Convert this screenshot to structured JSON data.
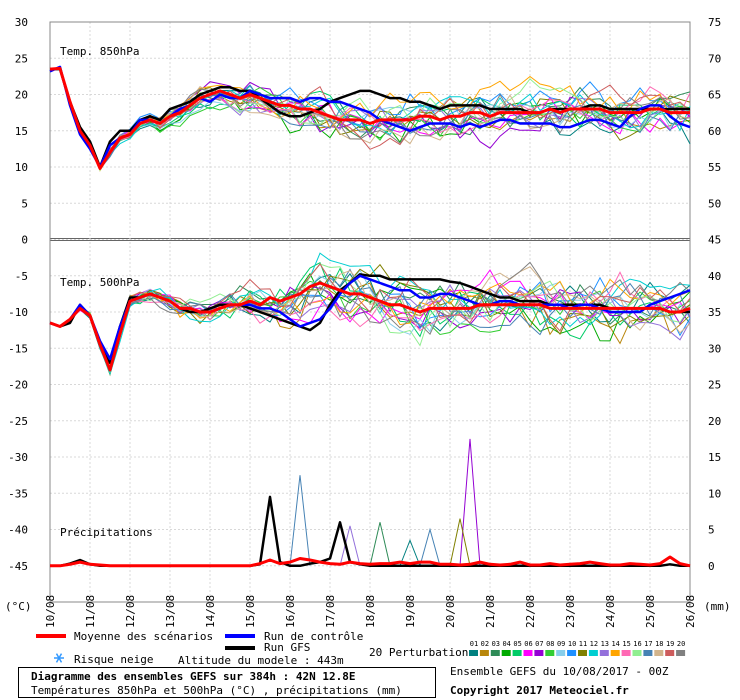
{
  "chart_data": {
    "type": "line",
    "title": "Diagramme des ensembles GEFS sur 384h : 42N 12.8E",
    "subtitle": "Températures 850hPa et 500hPa (°C) , précipitations (mm)",
    "x_ticks": [
      "10/08",
      "11/08",
      "12/08",
      "13/08",
      "14/08",
      "15/08",
      "16/08",
      "17/08",
      "18/08",
      "19/08",
      "20/08",
      "21/08",
      "22/08",
      "23/08",
      "24/08",
      "25/08",
      "26/08"
    ],
    "y_left_ticks": [
      "30",
      "25",
      "20",
      "15",
      "10",
      "5",
      "0",
      "-5",
      "-10",
      "-15",
      "-20",
      "-25",
      "-30",
      "-35",
      "-40",
      "-45"
    ],
    "y_right_ticks": [
      "75",
      "70",
      "65",
      "60",
      "55",
      "50",
      "45",
      "40",
      "35",
      "30",
      "25",
      "20",
      "15",
      "10",
      "5",
      "0"
    ],
    "y_left_unit": "(°C)",
    "y_right_unit": "(mm)",
    "ylim_left": [
      -50,
      30
    ],
    "panel_labels": [
      "Temp. 850hPa",
      "Temp. 500hPa",
      "Précipitations"
    ],
    "x_step_hours": 6,
    "member_colors": [
      "#008080",
      "#b8860b",
      "#2e8b57",
      "#00aa00",
      "#00cc66",
      "#ff00ff",
      "#9400d3",
      "#32cd32",
      "#87ceeb",
      "#1e90ff",
      "#808000",
      "#00ced1",
      "#9370db",
      "#ffa500",
      "#ff69b4",
      "#90ee90",
      "#4682b4",
      "#d2b48c",
      "#cd5c5c",
      "#808080"
    ],
    "series": [
      {
        "name": "Moyenne des scénarios",
        "color": "#ff0000",
        "panel": "850hPa",
        "values": [
          23.5,
          23.6,
          19,
          15,
          13,
          9.8,
          12,
          14,
          14.5,
          16,
          16.5,
          16,
          17,
          17.5,
          18.5,
          19.5,
          20,
          20.5,
          20,
          19.5,
          20,
          19.5,
          19,
          18.5,
          18.5,
          18,
          18,
          17.5,
          17,
          16.5,
          16.5,
          16.5,
          16,
          16.5,
          16.5,
          16.5,
          16.5,
          17,
          17,
          16.5,
          17,
          17,
          17.5,
          17.5,
          17,
          17.5,
          17.5,
          17.5,
          17.5,
          17.5,
          18,
          17.5,
          18,
          18,
          18,
          18,
          17.5,
          17.5,
          17.5,
          17.5,
          18,
          18,
          17.5,
          17.5,
          17.5
        ]
      },
      {
        "name": "Run de contrôle",
        "color": "#0000ff",
        "panel": "850hPa",
        "values": [
          23.2,
          23.8,
          18.5,
          14.5,
          12.5,
          10,
          13,
          14,
          14.5,
          16.5,
          16.5,
          16,
          17,
          18,
          18.5,
          19.5,
          19,
          20,
          19.5,
          19.5,
          20.5,
          20,
          19.5,
          19.5,
          19.5,
          19,
          19.5,
          19.5,
          19,
          19,
          18.5,
          18,
          17.5,
          16.5,
          16,
          15.5,
          15,
          15.5,
          16,
          16,
          16,
          15.5,
          16,
          15.5,
          16,
          16.5,
          16.5,
          16,
          16,
          16,
          16,
          15.5,
          15.5,
          16,
          16.5,
          16.5,
          16,
          15.5,
          17,
          18,
          18.5,
          18.5,
          17,
          16,
          15.5
        ]
      },
      {
        "name": "Run GFS",
        "color": "#000000",
        "panel": "850hPa",
        "values": [
          23.5,
          23.5,
          19,
          15.5,
          13.5,
          10,
          13.5,
          15,
          15,
          16.5,
          17,
          16.5,
          18,
          18.5,
          19,
          20,
          20.5,
          21,
          21,
          20.5,
          20.5,
          19.5,
          18.5,
          17.5,
          17,
          17,
          17.5,
          18,
          19,
          19.5,
          20,
          20.5,
          20.5,
          20,
          19.5,
          19.5,
          19,
          19,
          18.5,
          18,
          18.5,
          18.5,
          18.5,
          18.5,
          18,
          18,
          18,
          18,
          17.5,
          17.5,
          18,
          18,
          18,
          18,
          18.5,
          18.5,
          18,
          18,
          18,
          18,
          18,
          18,
          18,
          18,
          18
        ]
      },
      {
        "name": "Moyenne des scénarios",
        "color": "#ff0000",
        "panel": "500hPa",
        "values": [
          -11.5,
          -12,
          -11,
          -9.5,
          -10.5,
          -14.5,
          -18,
          -13,
          -8.5,
          -8,
          -7.5,
          -8,
          -8.5,
          -9.5,
          -9.5,
          -10,
          -10,
          -9.5,
          -9,
          -9,
          -8.5,
          -9,
          -8,
          -8.5,
          -8,
          -7.5,
          -6.5,
          -6,
          -6.5,
          -7,
          -7.5,
          -7.5,
          -8,
          -8.5,
          -9,
          -9,
          -9.5,
          -10,
          -9.5,
          -9.5,
          -9.5,
          -9.5,
          -9.5,
          -9,
          -9,
          -9,
          -9,
          -9,
          -9,
          -9,
          -9.5,
          -9.5,
          -9.5,
          -9.5,
          -9.5,
          -9.5,
          -9.5,
          -9.5,
          -9.5,
          -9.5,
          -9.5,
          -9.5,
          -10,
          -10,
          -9.5
        ]
      },
      {
        "name": "Run de contrôle",
        "color": "#0000ff",
        "panel": "500hPa",
        "values": [
          -11.5,
          -12,
          -11,
          -9,
          -10.5,
          -14,
          -16.5,
          -12,
          -8.5,
          -8,
          -7.5,
          -8,
          -8.5,
          -9.5,
          -9.5,
          -10,
          -10,
          -9.5,
          -9,
          -9,
          -9,
          -9.5,
          -9.5,
          -10,
          -11,
          -12,
          -11.5,
          -11,
          -9.5,
          -7.5,
          -6,
          -5,
          -5.5,
          -6,
          -6.5,
          -7,
          -7,
          -8,
          -8,
          -7.5,
          -7.5,
          -8,
          -8.5,
          -9,
          -9,
          -8.5,
          -8.5,
          -9,
          -9,
          -9,
          -9,
          -9,
          -9.5,
          -9,
          -9,
          -9.5,
          -10,
          -10,
          -10,
          -10,
          -9,
          -8.5,
          -8,
          -7.5,
          -7
        ]
      },
      {
        "name": "Run GFS",
        "color": "#000000",
        "panel": "500hPa",
        "values": [
          -11.5,
          -12,
          -11.5,
          -9,
          -10.5,
          -14.5,
          -17,
          -12,
          -8,
          -8,
          -7.5,
          -8,
          -8.5,
          -9.5,
          -10,
          -10,
          -9.5,
          -9,
          -9,
          -9,
          -9.5,
          -10,
          -10.5,
          -11,
          -11.5,
          -12,
          -12.5,
          -11.5,
          -9,
          -7,
          -6,
          -4.8,
          -5,
          -5,
          -5.5,
          -5.5,
          -5.5,
          -5.5,
          -5.5,
          -5.5,
          -5.8,
          -6,
          -6.5,
          -7,
          -7.5,
          -8,
          -8,
          -8.5,
          -8.5,
          -8.5,
          -9,
          -9,
          -9,
          -9,
          -9,
          -9,
          -9.5,
          -9.5,
          -9.5,
          -9.5,
          -9.5,
          -9.5,
          -10,
          -10,
          -10
        ]
      },
      {
        "name": "Moyenne des scénarios",
        "color": "#ff0000",
        "panel": "precip_mm",
        "values": [
          0,
          0,
          0.2,
          0.5,
          0.2,
          0.1,
          0,
          0,
          0,
          0,
          0,
          0,
          0,
          0,
          0,
          0,
          0,
          0,
          0,
          0,
          0,
          0.3,
          0.8,
          0.3,
          0.5,
          1,
          0.8,
          0.5,
          0.3,
          0.2,
          0.5,
          0.3,
          0.2,
          0.3,
          0.3,
          0.5,
          0.3,
          0.5,
          0.5,
          0.2,
          0.2,
          0.1,
          0.2,
          0.5,
          0.2,
          0.1,
          0.2,
          0.5,
          0.1,
          0.1,
          0.3,
          0.1,
          0.2,
          0.3,
          0.5,
          0.3,
          0.1,
          0.1,
          0.3,
          0.2,
          0.1,
          0.3,
          1.2,
          0.3,
          0
        ]
      },
      {
        "name": "Run GFS",
        "color": "#000000",
        "panel": "precip_mm",
        "values": [
          0,
          0,
          0.3,
          0.8,
          0.2,
          0,
          0,
          0,
          0,
          0,
          0,
          0,
          0,
          0,
          0,
          0,
          0,
          0,
          0,
          0,
          0,
          0.2,
          9.5,
          0.5,
          0,
          0,
          0.3,
          0.5,
          1,
          6,
          0.5,
          0.2,
          0,
          0,
          0,
          0,
          0,
          0,
          0,
          0,
          0,
          0,
          0,
          0,
          0,
          0,
          0,
          0,
          0,
          0,
          0,
          0,
          0,
          0,
          0,
          0,
          0,
          0,
          0,
          0,
          0,
          0,
          0.2,
          0,
          0
        ]
      }
    ],
    "precip_spikes_mm": [
      {
        "x_index": 42,
        "value": 17.5,
        "color": "#9400d3"
      },
      {
        "x_index": 41,
        "value": 6.5,
        "color": "#808000"
      },
      {
        "x_index": 25,
        "value": 12.5,
        "color": "#4682b4"
      },
      {
        "x_index": 30,
        "value": 5.5,
        "color": "#9370db"
      },
      {
        "x_index": 33,
        "value": 6,
        "color": "#2e8b57"
      },
      {
        "x_index": 38,
        "value": 5,
        "color": "#4682b4"
      },
      {
        "x_index": 36,
        "value": 3.5,
        "color": "#008080"
      }
    ]
  },
  "legend": {
    "mean_label": "Moyenne des scénarios",
    "control_label": "Run de contrôle",
    "gfs_label": "Run GFS",
    "snow_label": "Risque neige",
    "altitude_label": "Altitude du modele : 443m",
    "perturbations_label": "20 Perturbations",
    "perturbation_numbers": [
      "01",
      "02",
      "03",
      "04",
      "05",
      "06",
      "07",
      "08",
      "09",
      "10",
      "11",
      "12",
      "13",
      "14",
      "15",
      "16",
      "17",
      "18",
      "19",
      "20"
    ]
  },
  "footer": {
    "title": "Diagramme des ensembles GEFS sur 384h : 42N 12.8E",
    "subtitle": "Températures 850hPa et 500hPa (°C) , précipitations (mm)",
    "run_info": "Ensemble GEFS du 10/08/2017 - 00Z",
    "copyright": "Copyright 2017 Meteociel.fr"
  }
}
